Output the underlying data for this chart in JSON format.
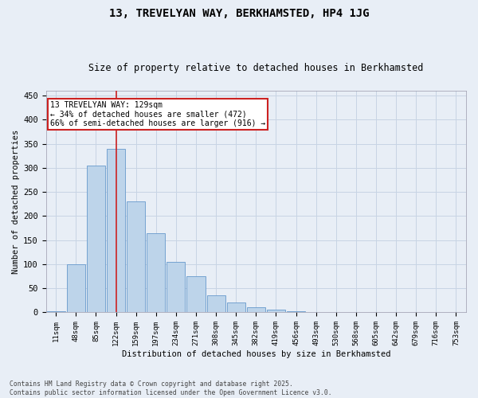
{
  "title": "13, TREVELYAN WAY, BERKHAMSTED, HP4 1JG",
  "subtitle": "Size of property relative to detached houses in Berkhamsted",
  "xlabel": "Distribution of detached houses by size in Berkhamsted",
  "ylabel": "Number of detached properties",
  "footer_line1": "Contains HM Land Registry data © Crown copyright and database right 2025.",
  "footer_line2": "Contains public sector information licensed under the Open Government Licence v3.0.",
  "bar_labels": [
    "11sqm",
    "48sqm",
    "85sqm",
    "122sqm",
    "159sqm",
    "197sqm",
    "234sqm",
    "271sqm",
    "308sqm",
    "345sqm",
    "382sqm",
    "419sqm",
    "456sqm",
    "493sqm",
    "530sqm",
    "568sqm",
    "605sqm",
    "642sqm",
    "679sqm",
    "716sqm",
    "753sqm"
  ],
  "bar_values": [
    2,
    100,
    305,
    340,
    230,
    165,
    105,
    75,
    35,
    20,
    10,
    5,
    2,
    1,
    0,
    0,
    0,
    0,
    0,
    0,
    0
  ],
  "bar_color": "#bdd4ea",
  "bar_edge_color": "#6699cc",
  "grid_color": "#c8d4e4",
  "background_color": "#e8eef6",
  "vline_x_index": 3,
  "vline_color": "#cc2222",
  "annotation_text": "13 TREVELYAN WAY: 129sqm\n← 34% of detached houses are smaller (472)\n66% of semi-detached houses are larger (916) →",
  "annotation_box_color": "#cc2222",
  "ylim": [
    0,
    460
  ],
  "yticks": [
    0,
    50,
    100,
    150,
    200,
    250,
    300,
    350,
    400,
    450
  ]
}
